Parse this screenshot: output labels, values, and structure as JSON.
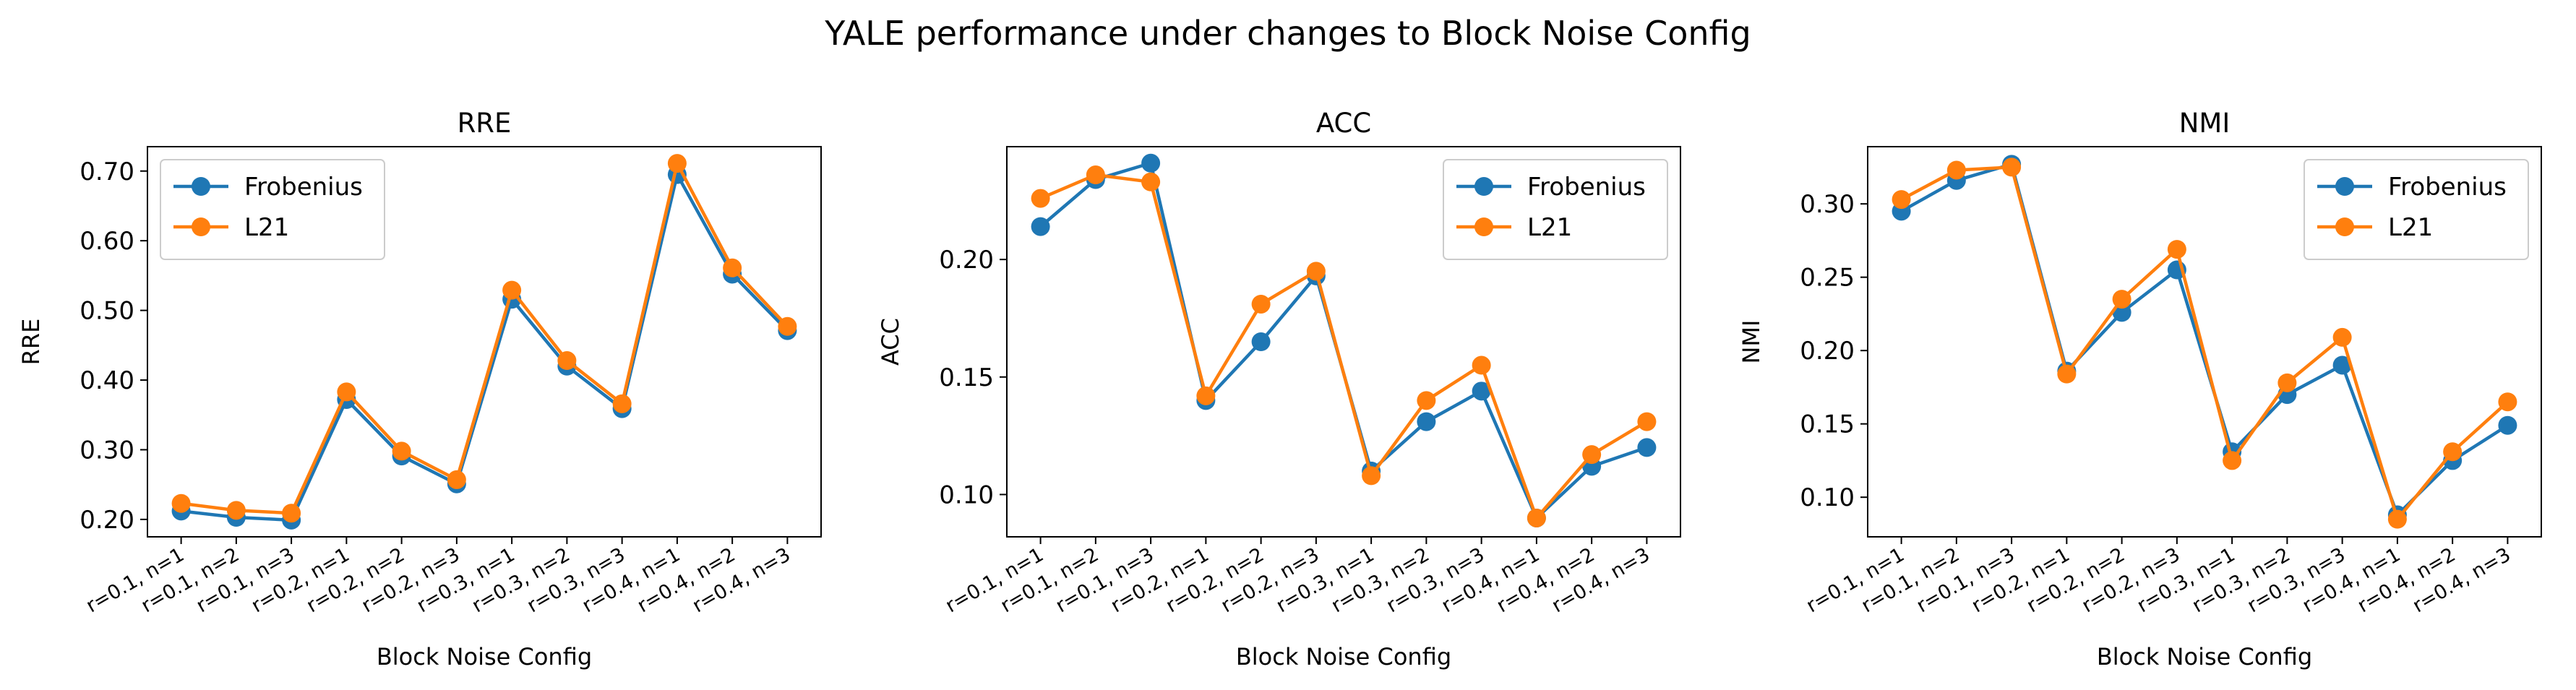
{
  "figure": {
    "suptitle": "YALE performance under changes to Block Noise Config"
  },
  "chart_data": [
    {
      "type": "line",
      "title": "RRE",
      "xlabel": "Block Noise Config",
      "ylabel": "RRE",
      "categories": [
        "r=0.1, n=1",
        "r=0.1, n=2",
        "r=0.1, n=3",
        "r=0.2, n=1",
        "r=0.2, n=2",
        "r=0.2, n=3",
        "r=0.3, n=1",
        "r=0.3, n=2",
        "r=0.3, n=3",
        "r=0.4, n=1",
        "r=0.4, n=2",
        "r=0.4, n=3"
      ],
      "ylim": [
        0.175,
        0.735
      ],
      "yticks": [
        0.2,
        0.3,
        0.4,
        0.5,
        0.6,
        0.7
      ],
      "ytick_labels": [
        "0.20",
        "0.30",
        "0.40",
        "0.50",
        "0.60",
        "0.70"
      ],
      "legend": "top-left",
      "grid": false,
      "series": [
        {
          "name": "Frobenius",
          "color": "#1f77b4",
          "values": [
            0.212,
            0.203,
            0.199,
            0.372,
            0.291,
            0.251,
            0.516,
            0.42,
            0.359,
            0.695,
            0.552,
            0.471
          ]
        },
        {
          "name": "L21",
          "color": "#ff7f0e",
          "values": [
            0.223,
            0.213,
            0.209,
            0.383,
            0.298,
            0.257,
            0.529,
            0.428,
            0.366,
            0.711,
            0.561,
            0.477
          ]
        }
      ]
    },
    {
      "type": "line",
      "title": "ACC",
      "xlabel": "Block Noise Config",
      "ylabel": "ACC",
      "categories": [
        "r=0.1, n=1",
        "r=0.1, n=2",
        "r=0.1, n=3",
        "r=0.2, n=1",
        "r=0.2, n=2",
        "r=0.2, n=3",
        "r=0.3, n=1",
        "r=0.3, n=2",
        "r=0.3, n=3",
        "r=0.4, n=1",
        "r=0.4, n=2",
        "r=0.4, n=3"
      ],
      "ylim": [
        0.082,
        0.248
      ],
      "yticks": [
        0.1,
        0.15,
        0.2
      ],
      "ytick_labels": [
        "0.10",
        "0.15",
        "0.20"
      ],
      "legend": "top-right",
      "grid": false,
      "series": [
        {
          "name": "Frobenius",
          "color": "#1f77b4",
          "values": [
            0.214,
            0.234,
            0.241,
            0.14,
            0.165,
            0.193,
            0.11,
            0.131,
            0.144,
            0.09,
            0.112,
            0.12
          ]
        },
        {
          "name": "L21",
          "color": "#ff7f0e",
          "values": [
            0.226,
            0.236,
            0.233,
            0.142,
            0.181,
            0.195,
            0.108,
            0.14,
            0.155,
            0.09,
            0.117,
            0.131
          ]
        }
      ]
    },
    {
      "type": "line",
      "title": "NMI",
      "xlabel": "Block Noise Config",
      "ylabel": "NMI",
      "categories": [
        "r=0.1, n=1",
        "r=0.1, n=2",
        "r=0.1, n=3",
        "r=0.2, n=1",
        "r=0.2, n=2",
        "r=0.2, n=3",
        "r=0.3, n=1",
        "r=0.3, n=2",
        "r=0.3, n=3",
        "r=0.4, n=1",
        "r=0.4, n=2",
        "r=0.4, n=3"
      ],
      "ylim": [
        0.073,
        0.339
      ],
      "yticks": [
        0.1,
        0.15,
        0.2,
        0.25,
        0.3
      ],
      "ytick_labels": [
        "0.10",
        "0.15",
        "0.20",
        "0.25",
        "0.30"
      ],
      "legend": "top-right",
      "grid": false,
      "series": [
        {
          "name": "Frobenius",
          "color": "#1f77b4",
          "values": [
            0.295,
            0.316,
            0.327,
            0.186,
            0.226,
            0.255,
            0.131,
            0.17,
            0.19,
            0.088,
            0.125,
            0.149
          ]
        },
        {
          "name": "L21",
          "color": "#ff7f0e",
          "values": [
            0.303,
            0.323,
            0.325,
            0.184,
            0.235,
            0.269,
            0.125,
            0.178,
            0.209,
            0.085,
            0.131,
            0.165
          ]
        }
      ]
    }
  ]
}
